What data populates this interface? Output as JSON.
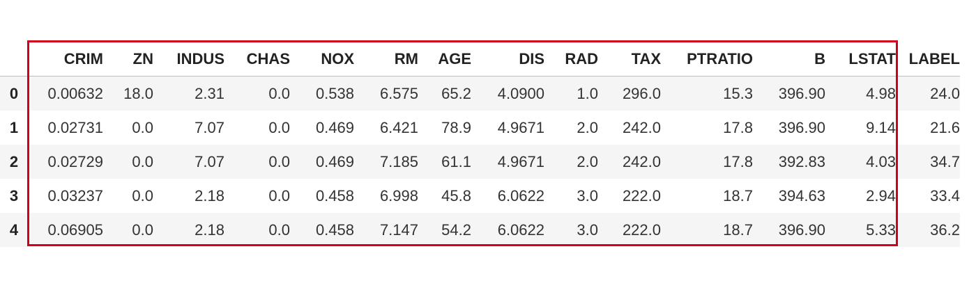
{
  "table": {
    "index_header": "",
    "columns": [
      "CRIM",
      "ZN",
      "INDUS",
      "CHAS",
      "NOX",
      "RM",
      "AGE",
      "DIS",
      "RAD",
      "TAX",
      "PTRATIO",
      "B",
      "LSTAT",
      "LABEL"
    ],
    "rows": [
      {
        "index": "0",
        "cells": [
          "0.00632",
          "18.0",
          "2.31",
          "0.0",
          "0.538",
          "6.575",
          "65.2",
          "4.0900",
          "1.0",
          "296.0",
          "15.3",
          "396.90",
          "4.98",
          "24.0"
        ]
      },
      {
        "index": "1",
        "cells": [
          "0.02731",
          "0.0",
          "7.07",
          "0.0",
          "0.469",
          "6.421",
          "78.9",
          "4.9671",
          "2.0",
          "242.0",
          "17.8",
          "396.90",
          "9.14",
          "21.6"
        ]
      },
      {
        "index": "2",
        "cells": [
          "0.02729",
          "0.0",
          "7.07",
          "0.0",
          "0.469",
          "7.185",
          "61.1",
          "4.9671",
          "2.0",
          "242.0",
          "17.8",
          "392.83",
          "4.03",
          "34.7"
        ]
      },
      {
        "index": "3",
        "cells": [
          "0.03237",
          "0.0",
          "2.18",
          "0.0",
          "0.458",
          "6.998",
          "45.8",
          "6.0622",
          "3.0",
          "222.0",
          "18.7",
          "394.63",
          "2.94",
          "33.4"
        ]
      },
      {
        "index": "4",
        "cells": [
          "0.06905",
          "0.0",
          "2.18",
          "0.0",
          "0.458",
          "7.147",
          "54.2",
          "6.0622",
          "3.0",
          "222.0",
          "18.7",
          "396.90",
          "5.33",
          "36.2"
        ]
      }
    ]
  },
  "highlight": {
    "color": "#d0021b",
    "covers_columns": [
      "CRIM",
      "ZN",
      "INDUS",
      "CHAS",
      "NOX",
      "RM",
      "AGE",
      "DIS",
      "RAD",
      "TAX",
      "PTRATIO",
      "B",
      "LSTAT"
    ]
  }
}
